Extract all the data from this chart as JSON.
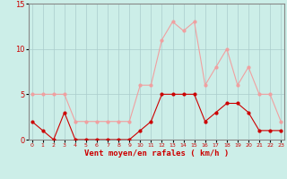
{
  "x": [
    0,
    1,
    2,
    3,
    4,
    5,
    6,
    7,
    8,
    9,
    10,
    11,
    12,
    13,
    14,
    15,
    16,
    17,
    18,
    19,
    20,
    21,
    22,
    23
  ],
  "wind_mean": [
    2,
    1,
    0,
    3,
    0,
    0,
    0,
    0,
    0,
    0,
    1,
    2,
    5,
    5,
    5,
    5,
    2,
    3,
    4,
    4,
    3,
    1,
    1,
    1
  ],
  "wind_gust": [
    5,
    5,
    5,
    5,
    2,
    2,
    2,
    2,
    2,
    2,
    6,
    6,
    11,
    13,
    12,
    13,
    6,
    8,
    10,
    6,
    8,
    5,
    5,
    2
  ],
  "bg_color": "#cceee8",
  "grid_color": "#aacccc",
  "mean_color": "#cc0000",
  "gust_color": "#f0a0a0",
  "xlabel": "Vent moyen/en rafales ( km/h )",
  "xlabel_color": "#cc0000",
  "tick_color": "#cc0000",
  "spine_color": "#888888",
  "ylim": [
    0,
    15
  ],
  "yticks": [
    0,
    5,
    10,
    15
  ],
  "xticks": [
    0,
    1,
    2,
    3,
    4,
    5,
    6,
    7,
    8,
    9,
    10,
    11,
    12,
    13,
    14,
    15,
    16,
    17,
    18,
    19,
    20,
    21,
    22,
    23
  ]
}
